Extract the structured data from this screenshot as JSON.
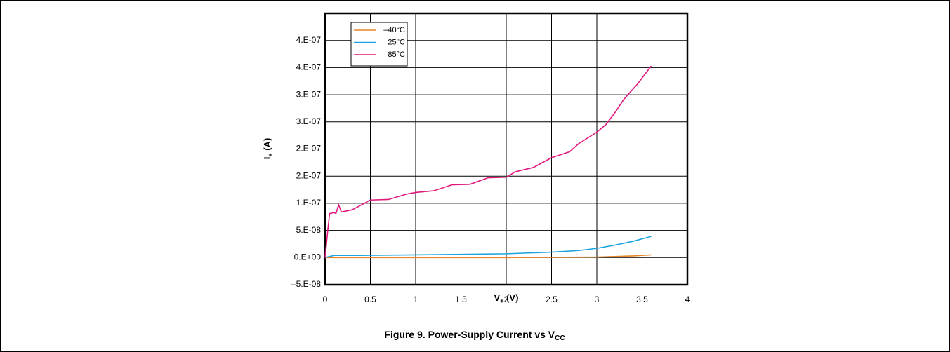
{
  "chart_data": {
    "type": "line",
    "xlabel": "V",
    "xlabel_sub": "+",
    "xlabel_unit": " (V)",
    "ylabel": "I",
    "ylabel_sub": "+",
    "ylabel_unit": " (A)",
    "caption": "Figure 9. Power-Supply Current vs V",
    "caption_sub": "CC",
    "xlim": [
      0,
      4
    ],
    "xticks": [
      0,
      0.5,
      1,
      1.5,
      2,
      2.5,
      3,
      3.5,
      4
    ],
    "ylim": [
      -5e-08,
      4.5e-07
    ],
    "yticks": [
      {
        "value": -5e-08,
        "label": "–5.E-08"
      },
      {
        "value": 0,
        "label": "0.E+00"
      },
      {
        "value": 5e-08,
        "label": "5.E-08"
      },
      {
        "value": 1e-07,
        "label": "1.E-07"
      },
      {
        "value": 1.5e-07,
        "label": "2.E-07"
      },
      {
        "value": 2e-07,
        "label": "2.E-07"
      },
      {
        "value": 2.5e-07,
        "label": "3.E-07"
      },
      {
        "value": 3e-07,
        "label": "3.E-07"
      },
      {
        "value": 3.5e-07,
        "label": "4.E-07"
      },
      {
        "value": 4e-07,
        "label": "4.E-07"
      }
    ],
    "grid": true,
    "legend": "upper left",
    "series": [
      {
        "name": "–40°C",
        "color": "#e8862a",
        "x": [
          0,
          1,
          2,
          3,
          3.4,
          3.6
        ],
        "values": [
          0,
          0,
          0,
          1e-09,
          3e-09,
          5e-09
        ]
      },
      {
        "name": "25°C",
        "color": "#1aa3dc",
        "x": [
          0,
          0.05,
          0.1,
          0.3,
          1,
          2,
          2.5,
          2.8,
          3,
          3.2,
          3.4,
          3.6
        ],
        "values": [
          0,
          2e-09,
          4e-09,
          4e-09,
          5e-09,
          7e-09,
          1e-08,
          1.3e-08,
          1.7e-08,
          2.3e-08,
          3e-08,
          3.9e-08
        ]
      },
      {
        "name": "85°C",
        "color": "#e0197d",
        "x": [
          0,
          0.03,
          0.05,
          0.1,
          0.12,
          0.15,
          0.18,
          0.3,
          0.5,
          0.7,
          0.9,
          1,
          1.2,
          1.4,
          1.6,
          1.8,
          2,
          2.1,
          2.3,
          2.5,
          2.7,
          2.8,
          3,
          3.1,
          3.2,
          3.3,
          3.45,
          3.6
        ],
        "values": [
          0,
          5e-08,
          8.1e-08,
          8.3e-08,
          8.1e-08,
          9.7e-08,
          8.4e-08,
          8.8e-08,
          1.06e-07,
          1.07e-07,
          1.17e-07,
          1.2e-07,
          1.23e-07,
          1.34e-07,
          1.35e-07,
          1.47e-07,
          1.48e-07,
          1.58e-07,
          1.66e-07,
          1.84e-07,
          1.95e-07,
          2.1e-07,
          2.31e-07,
          2.45e-07,
          2.67e-07,
          2.92e-07,
          3.2e-07,
          3.53e-07
        ]
      }
    ]
  }
}
